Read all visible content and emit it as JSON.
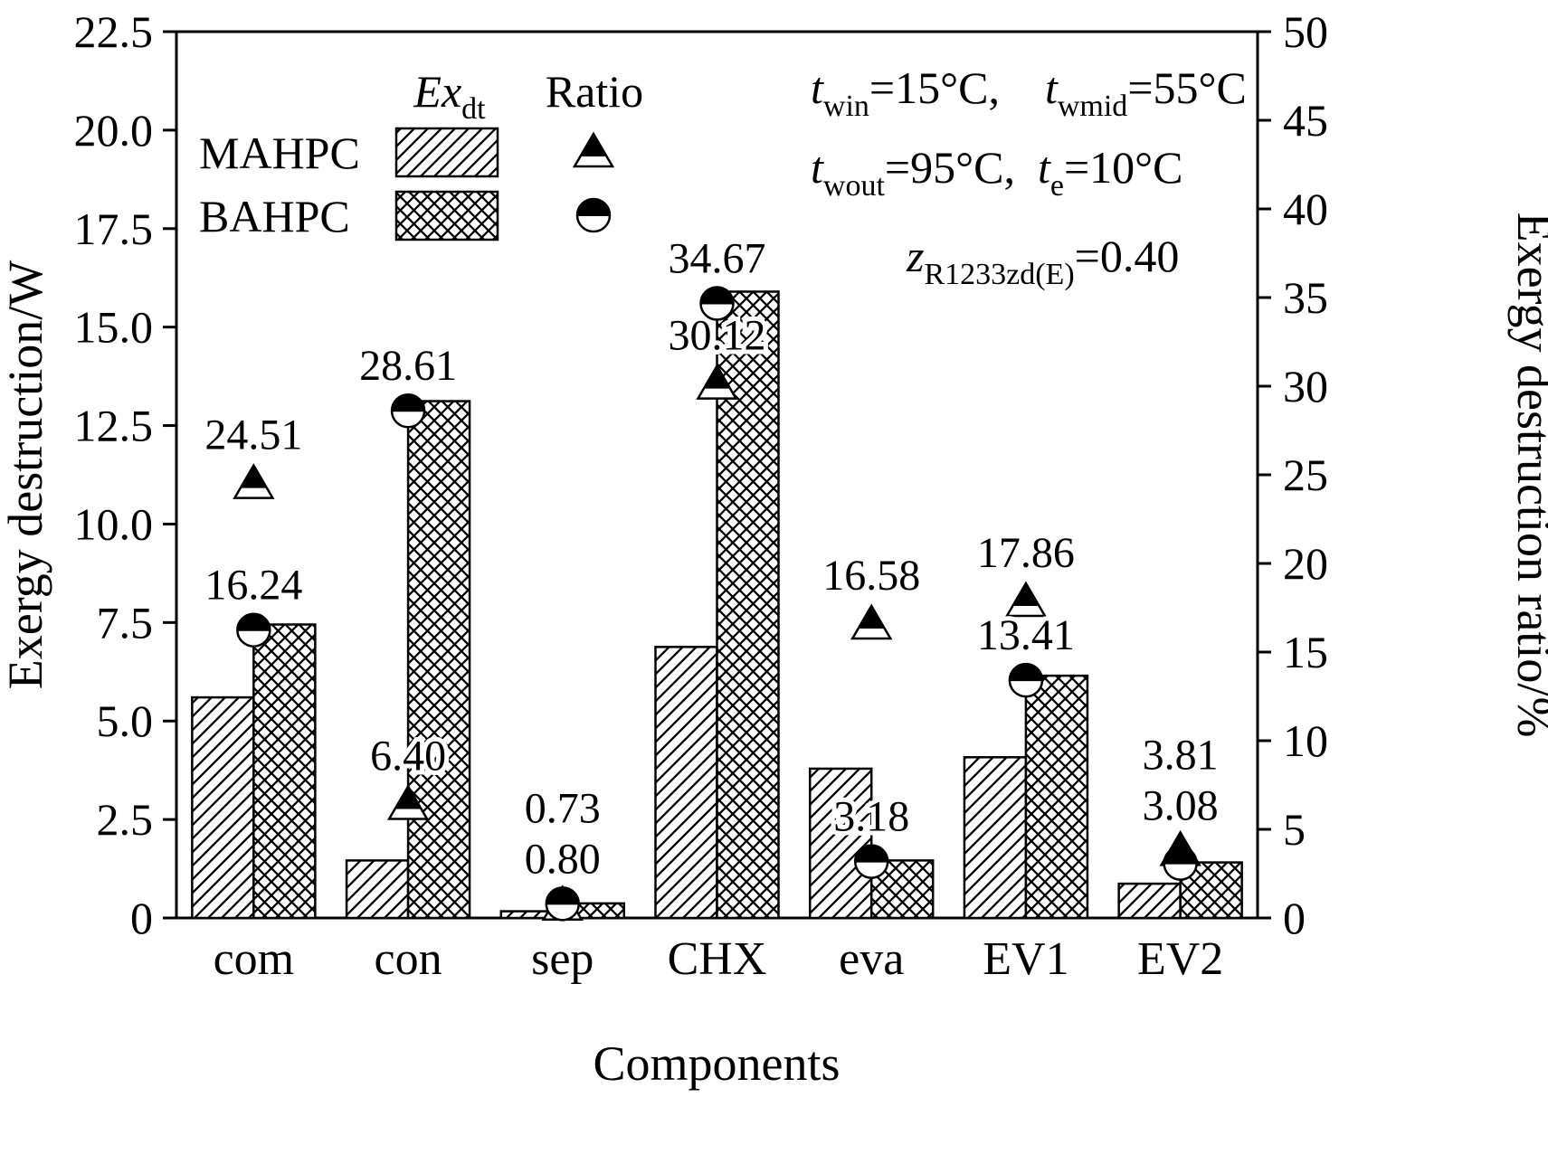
{
  "colors": {
    "ink": "#000000",
    "background": "#ffffff"
  },
  "chart_data": {
    "type": "bar",
    "title": "",
    "xlabel": "Components",
    "ylabel_left": "Exergy destruction/W",
    "ylabel_right": "Exergy destruction ratio/%",
    "ylim_left": [
      0,
      22.5
    ],
    "ytick_step_left": 2.5,
    "yticks_left": [
      "0",
      "2.5",
      "5.0",
      "7.5",
      "10.0",
      "12.5",
      "15.0",
      "17.5",
      "20.0",
      "22.5"
    ],
    "ylim_right": [
      0,
      50
    ],
    "ytick_step_right": 5,
    "yticks_right": [
      "0",
      "5",
      "10",
      "15",
      "20",
      "25",
      "30",
      "35",
      "40",
      "45",
      "50"
    ],
    "grid": false,
    "legend_position": "top-left-inside",
    "categories": [
      "com",
      "con",
      "sep",
      "CHX",
      "eva",
      "EV1",
      "EV2"
    ],
    "bar_series": [
      {
        "name": "MAHPC",
        "hatch": "diagonal",
        "axis": "left",
        "values": [
          5.6,
          1.46,
          0.17,
          6.88,
          3.79,
          4.08,
          0.87
        ]
      },
      {
        "name": "BAHPC",
        "hatch": "crosshatch",
        "axis": "left",
        "values": [
          7.45,
          13.12,
          0.37,
          15.9,
          1.46,
          6.15,
          1.41
        ]
      }
    ],
    "ratio_series": [
      {
        "name": "MAHPC",
        "marker": "half-filled-triangle",
        "axis": "right",
        "values": [
          24.51,
          6.4,
          0.73,
          30.12,
          16.58,
          17.86,
          3.81
        ],
        "labels": [
          "24.51",
          "6.40",
          "0.73",
          "30.12",
          "16.58",
          "17.86",
          "3.81"
        ]
      },
      {
        "name": "BAHPC",
        "marker": "half-filled-circle",
        "axis": "right",
        "values": [
          16.24,
          28.61,
          0.8,
          34.67,
          3.18,
          13.41,
          3.08
        ],
        "labels": [
          "16.24",
          "28.61",
          "0.80",
          "34.67",
          "3.18",
          "13.41",
          "3.08"
        ]
      }
    ],
    "legend": {
      "col_bar_header": {
        "base": "Ex",
        "sub": "dt"
      },
      "col_marker_header": "Ratio",
      "rows": [
        "MAHPC",
        "BAHPC"
      ]
    },
    "annotations": [
      {
        "segments": [
          {
            "t": "t",
            "italic": true
          },
          {
            "t": "win",
            "sub": true
          },
          {
            "t": "=15°C,    "
          },
          {
            "t": "t",
            "italic": true
          },
          {
            "t": "wmid",
            "sub": true
          },
          {
            "t": "=55°C"
          }
        ]
      },
      {
        "segments": [
          {
            "t": "t",
            "italic": true
          },
          {
            "t": "wout",
            "sub": true
          },
          {
            "t": "=95°C,  "
          },
          {
            "t": "t",
            "italic": true
          },
          {
            "t": "e",
            "sub": true
          },
          {
            "t": "=10°C"
          }
        ]
      },
      {
        "segments": [
          {
            "t": "z",
            "italic": true
          },
          {
            "t": "R1233zd(E)",
            "sub": true
          },
          {
            "t": "=0.40"
          }
        ]
      }
    ]
  }
}
